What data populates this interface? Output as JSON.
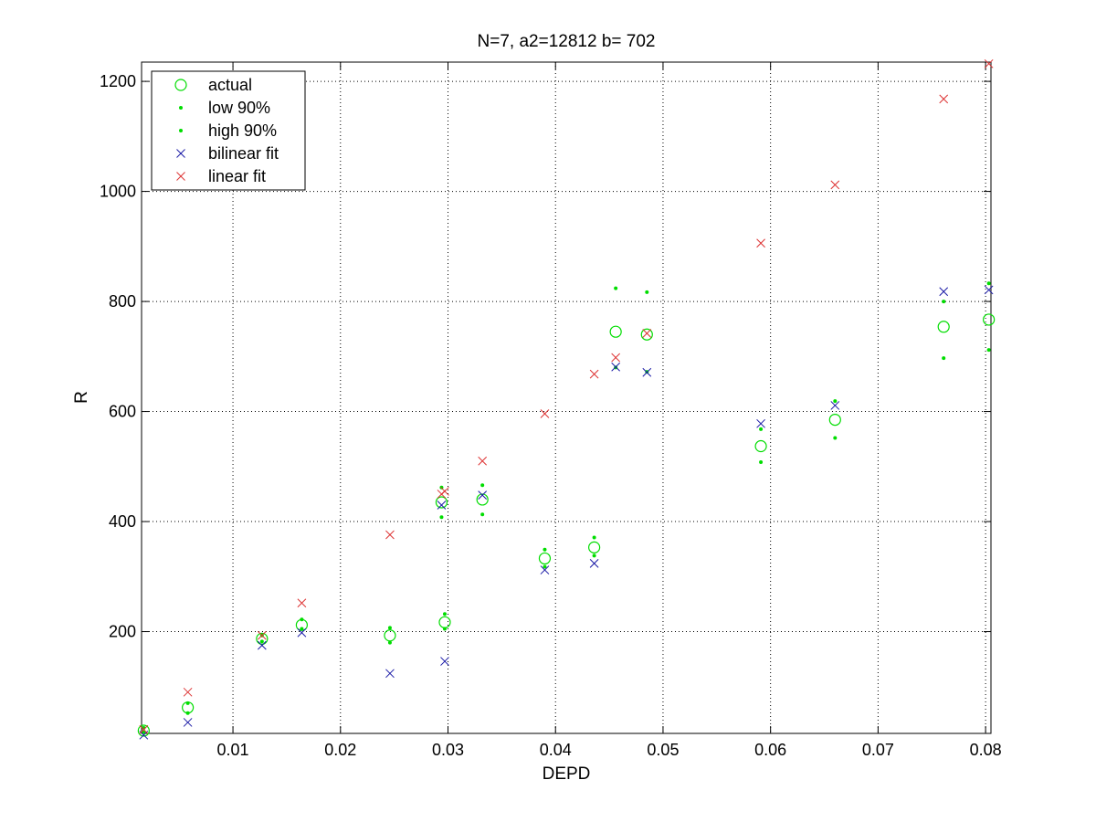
{
  "chart_data": {
    "type": "scatter",
    "title": "N=7, a2=12812 b=  702",
    "xlabel": "DEPD",
    "ylabel": "R",
    "xlim": [
      0.0015,
      0.0805
    ],
    "ylim": [
      15,
      1235
    ],
    "xticks": [
      0.01,
      0.02,
      0.03,
      0.04,
      0.05,
      0.06,
      0.07,
      0.08
    ],
    "xtick_labels": [
      "0.01",
      "0.02",
      "0.03",
      "0.04",
      "0.05",
      "0.06",
      "0.07",
      "0.08"
    ],
    "yticks": [
      200,
      400,
      600,
      800,
      1000,
      1200
    ],
    "ytick_labels": [
      "200",
      "400",
      "600",
      "800",
      "1000",
      "1200"
    ],
    "grid": true,
    "grid_style": "dotted",
    "legend_position": "top-left",
    "series": [
      {
        "name": "actual",
        "marker": "circle",
        "color": "#00dd00",
        "points": [
          [
            0.0017,
            20
          ],
          [
            0.0058,
            62
          ],
          [
            0.0127,
            187
          ],
          [
            0.0164,
            212
          ],
          [
            0.0246,
            193
          ],
          [
            0.0297,
            217
          ],
          [
            0.0294,
            435
          ],
          [
            0.0332,
            440
          ],
          [
            0.039,
            333
          ],
          [
            0.0436,
            353
          ],
          [
            0.0456,
            745
          ],
          [
            0.0485,
            740
          ],
          [
            0.0591,
            537
          ],
          [
            0.066,
            585
          ],
          [
            0.0761,
            754
          ],
          [
            0.0803,
            767
          ]
        ]
      },
      {
        "name": "low 90%",
        "marker": "dot",
        "color": "#00dd00",
        "points": [
          [
            0.0017,
            17
          ],
          [
            0.0058,
            52
          ],
          [
            0.0127,
            182
          ],
          [
            0.0164,
            205
          ],
          [
            0.0246,
            180
          ],
          [
            0.0297,
            205
          ],
          [
            0.0294,
            408
          ],
          [
            0.0332,
            413
          ],
          [
            0.039,
            318
          ],
          [
            0.0436,
            338
          ],
          [
            0.0456,
            680
          ],
          [
            0.0485,
            672
          ],
          [
            0.0591,
            508
          ],
          [
            0.066,
            552
          ],
          [
            0.0761,
            697
          ],
          [
            0.0803,
            712
          ]
        ]
      },
      {
        "name": "high 90%",
        "marker": "dot",
        "color": "#00dd00",
        "points": [
          [
            0.0017,
            25
          ],
          [
            0.0058,
            70
          ],
          [
            0.0127,
            193
          ],
          [
            0.0164,
            222
          ],
          [
            0.0246,
            207
          ],
          [
            0.0297,
            232
          ],
          [
            0.0294,
            462
          ],
          [
            0.0332,
            466
          ],
          [
            0.039,
            349
          ],
          [
            0.0436,
            371
          ],
          [
            0.0456,
            824
          ],
          [
            0.0485,
            817
          ],
          [
            0.0591,
            568
          ],
          [
            0.066,
            619
          ],
          [
            0.0761,
            800
          ],
          [
            0.0803,
            833
          ]
        ]
      },
      {
        "name": "bilinear fit",
        "marker": "x",
        "color": "#1a1aa6",
        "points": [
          [
            0.0017,
            12
          ],
          [
            0.0058,
            35
          ],
          [
            0.0127,
            175
          ],
          [
            0.0164,
            198
          ],
          [
            0.0246,
            124
          ],
          [
            0.0297,
            146
          ],
          [
            0.0294,
            430
          ],
          [
            0.0332,
            448
          ],
          [
            0.039,
            312
          ],
          [
            0.0436,
            324
          ],
          [
            0.0456,
            681
          ],
          [
            0.0485,
            671
          ],
          [
            0.0591,
            578
          ],
          [
            0.066,
            611
          ],
          [
            0.0761,
            818
          ],
          [
            0.0803,
            821
          ]
        ]
      },
      {
        "name": "linear fit",
        "marker": "x",
        "color": "#dd3333",
        "points": [
          [
            0.0017,
            22
          ],
          [
            0.0058,
            90
          ],
          [
            0.0127,
            193
          ],
          [
            0.0164,
            252
          ],
          [
            0.0246,
            376
          ],
          [
            0.0297,
            455
          ],
          [
            0.0294,
            450
          ],
          [
            0.0332,
            510
          ],
          [
            0.039,
            596
          ],
          [
            0.0436,
            668
          ],
          [
            0.0456,
            698
          ],
          [
            0.0485,
            742
          ],
          [
            0.0591,
            906
          ],
          [
            0.066,
            1012
          ],
          [
            0.0761,
            1168
          ],
          [
            0.0803,
            1232
          ]
        ]
      }
    ]
  }
}
